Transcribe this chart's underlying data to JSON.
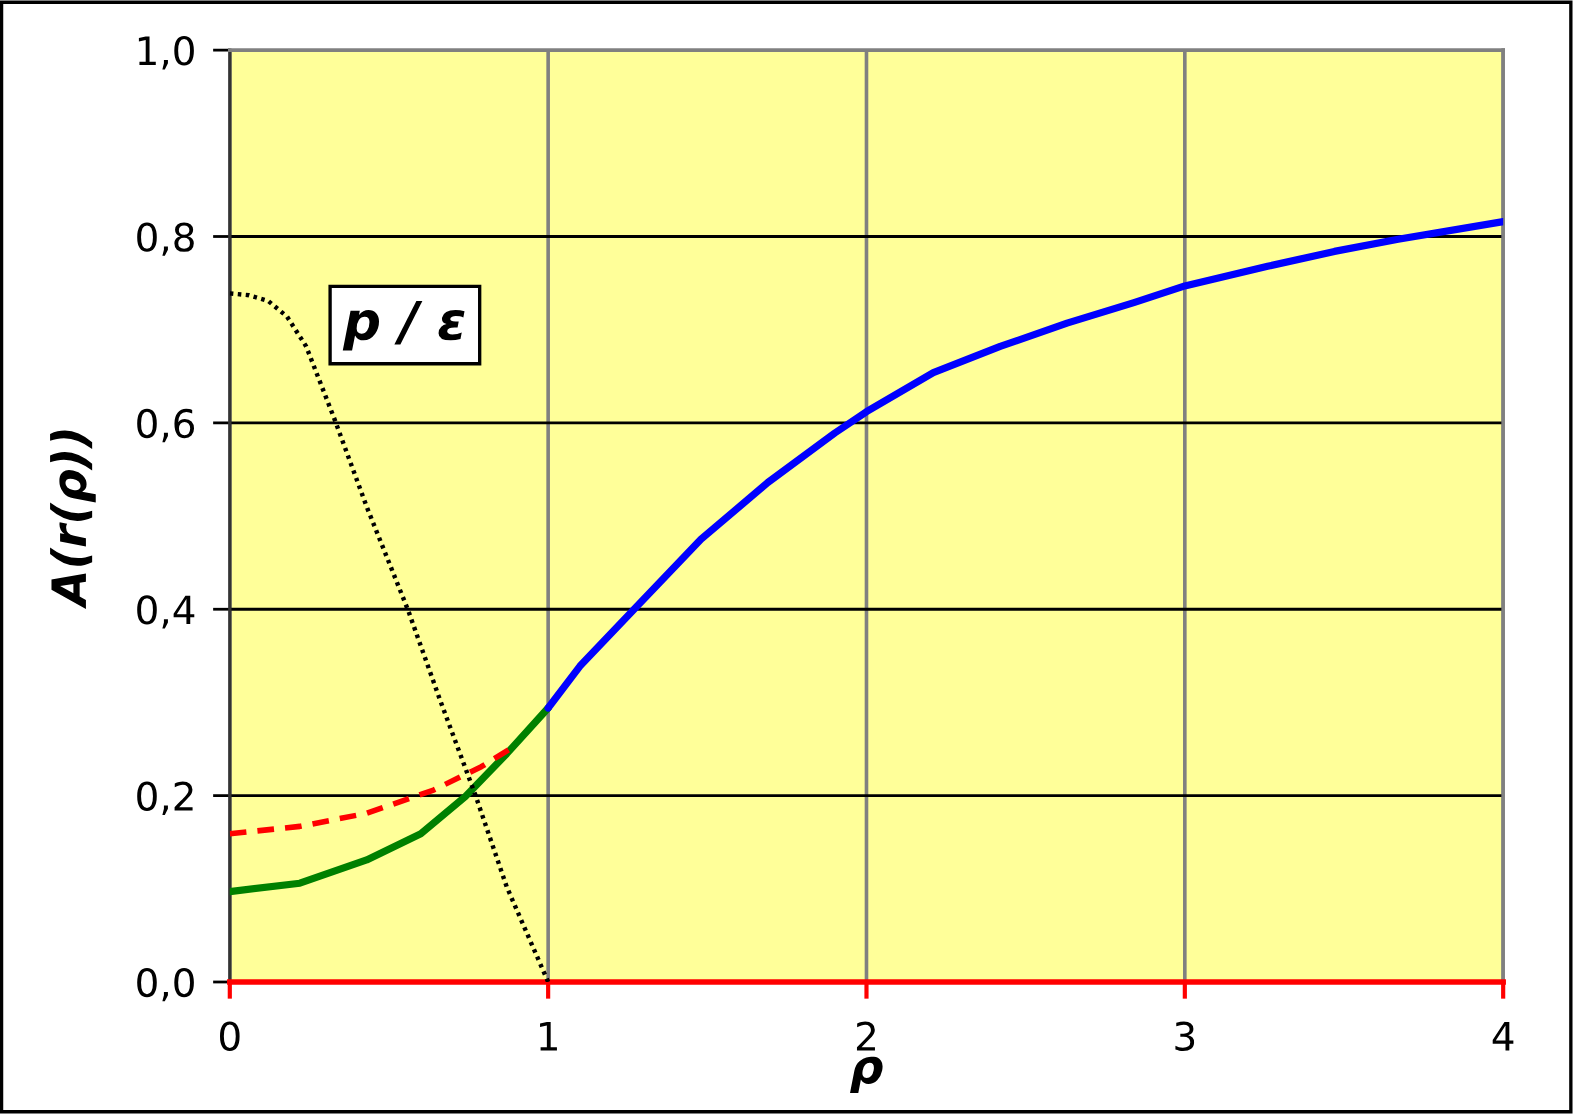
{
  "chart_data": {
    "type": "line",
    "xlabel": "ρ",
    "ylabel": "A(r(ρ))",
    "xlim": [
      0,
      4
    ],
    "xticks": [
      0,
      1,
      2,
      3,
      4
    ],
    "ylim": [
      0,
      1
    ],
    "yticks": [
      {
        "value": 0,
        "label": "0,0"
      },
      {
        "value": 0.2,
        "label": "0,2"
      },
      {
        "value": 0.4,
        "label": "0,4"
      },
      {
        "value": 0.6,
        "label": "0,6"
      },
      {
        "value": 0.8,
        "label": "0,8"
      },
      {
        "value": 1,
        "label": "1,0"
      }
    ],
    "grid": true,
    "legend": false,
    "marker": "none",
    "series": [
      {
        "color": "#008000",
        "line_style": "solid",
        "x": [
          0,
          0.22,
          0.43,
          0.6,
          0.74,
          0.87,
          1.0
        ],
        "values": [
          0.097,
          0.106,
          0.131,
          0.159,
          0.199,
          0.245,
          0.294
        ]
      },
      {
        "color": "#ff0000",
        "line_style": "dashed",
        "x": [
          0,
          0.22,
          0.43,
          0.64,
          0.79,
          0.89
        ],
        "values": [
          0.159,
          0.167,
          0.181,
          0.206,
          0.231,
          0.252
        ]
      },
      {
        "color": "#0000ff",
        "line_style": "solid",
        "x": [
          1.0,
          1.1,
          1.27,
          1.48,
          1.69,
          1.9,
          2.0,
          2.21,
          2.42,
          2.63,
          2.84,
          3.0,
          3.26,
          3.47,
          3.67,
          4.0
        ],
        "values": [
          0.294,
          0.339,
          0.4,
          0.475,
          0.536,
          0.589,
          0.612,
          0.654,
          0.682,
          0.707,
          0.729,
          0.747,
          0.768,
          0.784,
          0.797,
          0.816
        ]
      },
      {
        "name": "p / ε",
        "color": "#000000",
        "line_style": "dotted",
        "x": [
          0,
          0.06,
          0.12,
          0.18,
          0.24,
          0.33,
          0.43,
          0.56,
          0.66,
          0.77,
          0.87,
          1.0
        ],
        "values": [
          0.739,
          0.737,
          0.731,
          0.714,
          0.682,
          0.603,
          0.51,
          0.399,
          0.303,
          0.202,
          0.102,
          0.0
        ]
      }
    ]
  }
}
